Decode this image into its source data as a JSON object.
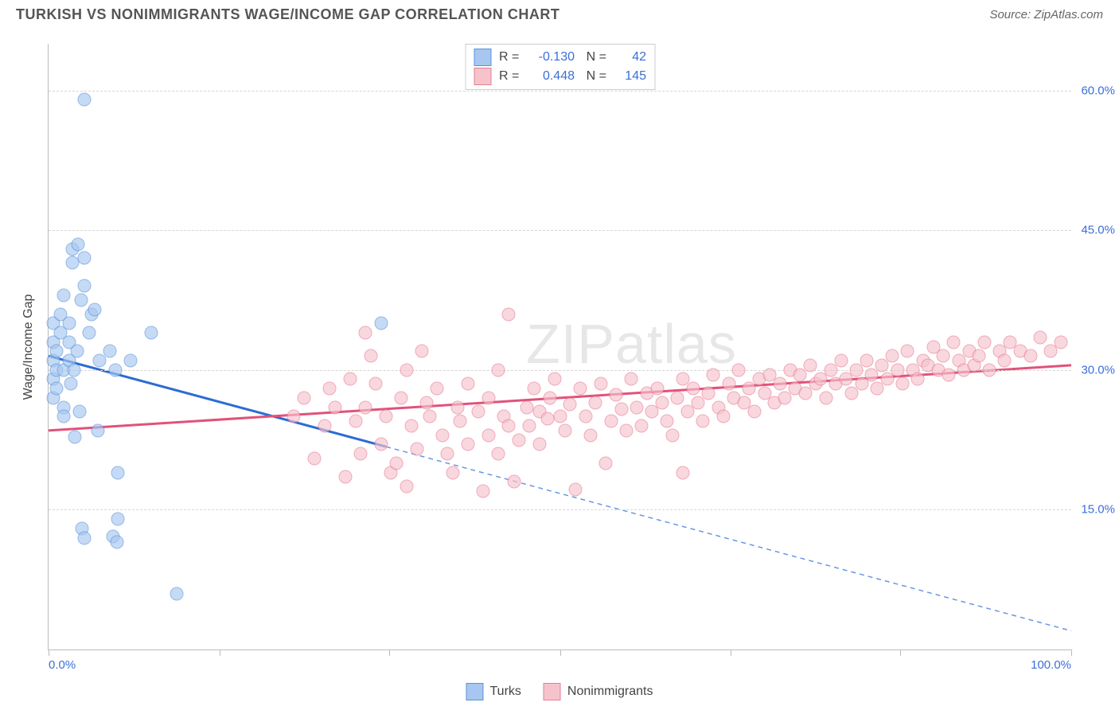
{
  "header": {
    "title": "TURKISH VS NONIMMIGRANTS WAGE/INCOME GAP CORRELATION CHART",
    "source": "Source: ZipAtlas.com"
  },
  "watermark": {
    "prefix": "ZIP",
    "suffix": "atlas"
  },
  "chart": {
    "type": "scatter",
    "background_color": "#ffffff",
    "y_axis": {
      "label": "Wage/Income Gap",
      "min": 0,
      "max": 65,
      "ticks": [
        15,
        30,
        45,
        60
      ],
      "tick_labels": [
        "15.0%",
        "30.0%",
        "45.0%",
        "60.0%"
      ],
      "label_color": "#3b6fd8",
      "grid_color": "#d5d5d5"
    },
    "x_axis": {
      "min": 0,
      "max": 100,
      "left_label": "0.0%",
      "right_label": "100.0%",
      "tick_positions": [
        0,
        16.7,
        33.3,
        50,
        66.7,
        83.3,
        100
      ],
      "label_color": "#3b6fd8"
    },
    "series": [
      {
        "name": "Turks",
        "fill_color": "#a7c7f0",
        "border_color": "#5b93db",
        "marker_radius": 8.5,
        "r_value": "-0.130",
        "n_value": "42",
        "trend": {
          "y_at_x0": 31.5,
          "y_at_x100": 2.0,
          "solid_until_x": 33,
          "color": "#2b6cd4",
          "width": 3
        },
        "points": [
          [
            0.5,
            31
          ],
          [
            0.5,
            29
          ],
          [
            0.5,
            27
          ],
          [
            0.5,
            33
          ],
          [
            0.5,
            35
          ],
          [
            0.8,
            30
          ],
          [
            0.8,
            28
          ],
          [
            0.8,
            32
          ],
          [
            1.2,
            36
          ],
          [
            1.2,
            34
          ],
          [
            1.5,
            30
          ],
          [
            1.5,
            26
          ],
          [
            1.5,
            25
          ],
          [
            1.5,
            38
          ],
          [
            2.0,
            31
          ],
          [
            2.0,
            33
          ],
          [
            2.0,
            35
          ],
          [
            2.2,
            28.5
          ],
          [
            2.3,
            43
          ],
          [
            2.3,
            41.5
          ],
          [
            2.5,
            30
          ],
          [
            2.8,
            32
          ],
          [
            2.9,
            43.5
          ],
          [
            3.0,
            25.5
          ],
          [
            3.2,
            37.5
          ],
          [
            3.5,
            42
          ],
          [
            3.5,
            39
          ],
          [
            4.0,
            34
          ],
          [
            4.2,
            36
          ],
          [
            4.5,
            36.5
          ],
          [
            5.0,
            31
          ],
          [
            6.0,
            32
          ],
          [
            6.5,
            30
          ],
          [
            8.0,
            31
          ],
          [
            10.0,
            34
          ],
          [
            3.5,
            59
          ],
          [
            3.3,
            13.0
          ],
          [
            3.5,
            12.0
          ],
          [
            6.8,
            14.0
          ],
          [
            6.3,
            12.1
          ],
          [
            6.7,
            11.5
          ],
          [
            6.8,
            19.0
          ],
          [
            4.8,
            23.5
          ],
          [
            2.6,
            22.8
          ],
          [
            12.5,
            6.0
          ],
          [
            32.5,
            35.0
          ]
        ]
      },
      {
        "name": "Nonimmigrants",
        "fill_color": "#f6c3cd",
        "border_color": "#e77c94",
        "marker_radius": 8.5,
        "r_value": "0.448",
        "n_value": "145",
        "trend": {
          "y_at_x0": 23.5,
          "y_at_x100": 30.5,
          "solid_until_x": 100,
          "color": "#e0527b",
          "width": 3
        },
        "points": [
          [
            24,
            25
          ],
          [
            25,
            27
          ],
          [
            26,
            20.5
          ],
          [
            27,
            24
          ],
          [
            27.5,
            28
          ],
          [
            28,
            26
          ],
          [
            29,
            18.5
          ],
          [
            29.5,
            29
          ],
          [
            30,
            24.5
          ],
          [
            30.5,
            21
          ],
          [
            31,
            34
          ],
          [
            31,
            26
          ],
          [
            31.5,
            31.5
          ],
          [
            32,
            28.5
          ],
          [
            32.5,
            22
          ],
          [
            33,
            25
          ],
          [
            33.5,
            19
          ],
          [
            34,
            20
          ],
          [
            34.5,
            27
          ],
          [
            35,
            17.5
          ],
          [
            35,
            30
          ],
          [
            35.5,
            24
          ],
          [
            36,
            21.5
          ],
          [
            36.5,
            32
          ],
          [
            37,
            26.5
          ],
          [
            37.3,
            25
          ],
          [
            38,
            28
          ],
          [
            38.5,
            23
          ],
          [
            39,
            21
          ],
          [
            39.5,
            19
          ],
          [
            40,
            26
          ],
          [
            40.2,
            24.5
          ],
          [
            41,
            28.5
          ],
          [
            41,
            22
          ],
          [
            42,
            25.5
          ],
          [
            42.5,
            17
          ],
          [
            43,
            23
          ],
          [
            43,
            27
          ],
          [
            44,
            21
          ],
          [
            44,
            30
          ],
          [
            44.5,
            25
          ],
          [
            45,
            24
          ],
          [
            45,
            36
          ],
          [
            45.5,
            18
          ],
          [
            46,
            22.5
          ],
          [
            46.8,
            26
          ],
          [
            47,
            24
          ],
          [
            47.5,
            28
          ],
          [
            48,
            25.5
          ],
          [
            48,
            22
          ],
          [
            48.8,
            24.8
          ],
          [
            49,
            27
          ],
          [
            49.5,
            29
          ],
          [
            50,
            25
          ],
          [
            50.5,
            23.5
          ],
          [
            51,
            26.3
          ],
          [
            51.5,
            17.2
          ],
          [
            52,
            28
          ],
          [
            52.5,
            25
          ],
          [
            53,
            23
          ],
          [
            53.5,
            26.5
          ],
          [
            54,
            28.5
          ],
          [
            54.5,
            20
          ],
          [
            55,
            24.5
          ],
          [
            55.5,
            27.3
          ],
          [
            56,
            25.8
          ],
          [
            56.5,
            23.5
          ],
          [
            57,
            29
          ],
          [
            57.5,
            26
          ],
          [
            58,
            24
          ],
          [
            58.5,
            27.5
          ],
          [
            59,
            25.5
          ],
          [
            62,
            19
          ],
          [
            59.5,
            28
          ],
          [
            60,
            26.5
          ],
          [
            60.5,
            24.5
          ],
          [
            61,
            23
          ],
          [
            61.5,
            27
          ],
          [
            62,
            29
          ],
          [
            62.5,
            25.5
          ],
          [
            63,
            28
          ],
          [
            63.5,
            26.5
          ],
          [
            64,
            24.5
          ],
          [
            64.5,
            27.5
          ],
          [
            65,
            29.5
          ],
          [
            65.5,
            26
          ],
          [
            66,
            25
          ],
          [
            66.5,
            28.5
          ],
          [
            67,
            27
          ],
          [
            67.5,
            30
          ],
          [
            68,
            26.5
          ],
          [
            68.5,
            28
          ],
          [
            69,
            25.5
          ],
          [
            69.5,
            29
          ],
          [
            70,
            27.5
          ],
          [
            70.5,
            29.5
          ],
          [
            71,
            26.5
          ],
          [
            71.5,
            28.5
          ],
          [
            72,
            27
          ],
          [
            72.5,
            30
          ],
          [
            73,
            28
          ],
          [
            73.5,
            29.5
          ],
          [
            74,
            27.5
          ],
          [
            74.5,
            30.5
          ],
          [
            75,
            28.5
          ],
          [
            75.5,
            29
          ],
          [
            76,
            27
          ],
          [
            76.5,
            30
          ],
          [
            77,
            28.5
          ],
          [
            77.5,
            31
          ],
          [
            78,
            29
          ],
          [
            78.5,
            27.5
          ],
          [
            79,
            30
          ],
          [
            79.5,
            28.5
          ],
          [
            80,
            31
          ],
          [
            80.5,
            29.5
          ],
          [
            81,
            28
          ],
          [
            81.5,
            30.5
          ],
          [
            82,
            29
          ],
          [
            82.5,
            31.5
          ],
          [
            83,
            30
          ],
          [
            83.5,
            28.5
          ],
          [
            84,
            32
          ],
          [
            84.5,
            30
          ],
          [
            85,
            29
          ],
          [
            85.5,
            31
          ],
          [
            86,
            30.5
          ],
          [
            86.5,
            32.5
          ],
          [
            87,
            30
          ],
          [
            87.5,
            31.5
          ],
          [
            88,
            29.5
          ],
          [
            88.5,
            33
          ],
          [
            89,
            31
          ],
          [
            89.5,
            30
          ],
          [
            90,
            32
          ],
          [
            90.5,
            30.5
          ],
          [
            91,
            31.5
          ],
          [
            91.5,
            33
          ],
          [
            92,
            30
          ],
          [
            93,
            32
          ],
          [
            93.5,
            31
          ],
          [
            94,
            33
          ],
          [
            95,
            32
          ],
          [
            96,
            31.5
          ],
          [
            97,
            33.5
          ],
          [
            98,
            32
          ],
          [
            99,
            33
          ]
        ]
      }
    ],
    "bottom_legend": [
      {
        "label": "Turks",
        "fill": "#a7c7f0",
        "border": "#5b93db"
      },
      {
        "label": "Nonimmigrants",
        "fill": "#f6c3cd",
        "border": "#e77c94"
      }
    ]
  }
}
